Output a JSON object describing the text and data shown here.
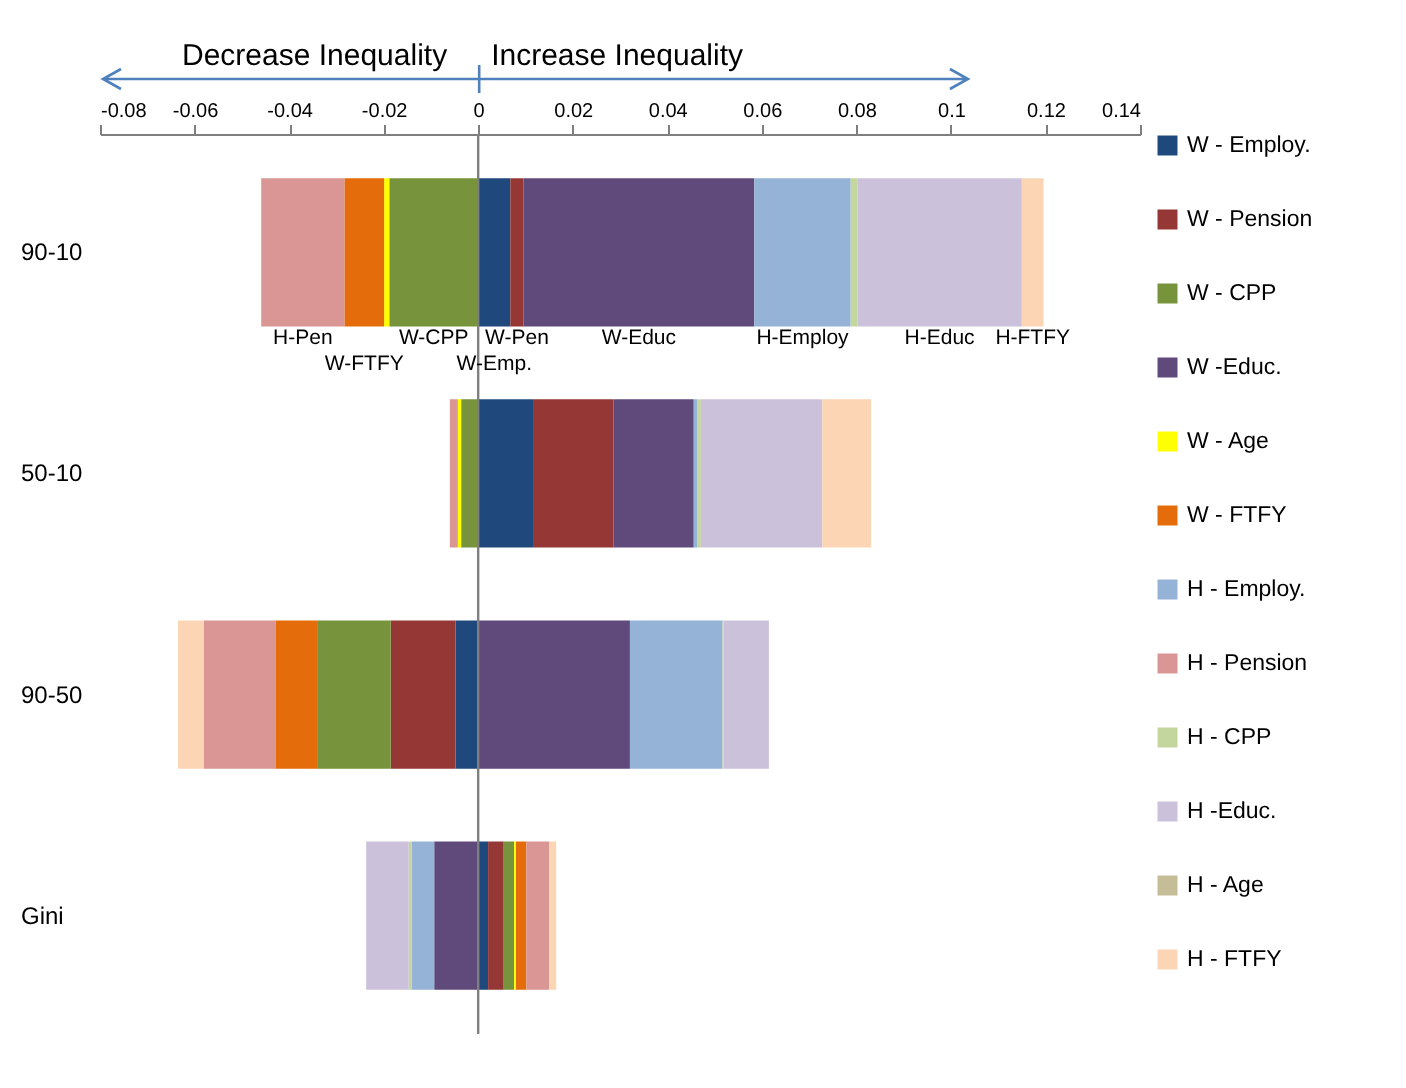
{
  "chart_data": {
    "type": "bar",
    "orientation": "horizontal",
    "stacked": true,
    "legend": "right",
    "grid": false,
    "categories": [
      "90-10",
      "50-10",
      "90-50",
      "Gini"
    ],
    "xlim": [
      -0.08,
      0.14
    ],
    "xticks": [
      -0.08,
      -0.06,
      -0.04,
      -0.02,
      0,
      0.02,
      0.04,
      0.06,
      0.08,
      0.1,
      0.12,
      0.14
    ],
    "series": [
      {
        "name": "W - Employ.",
        "color": "#1f497d",
        "values": [
          0.0068,
          0.0116,
          -0.0048,
          0.0021
        ]
      },
      {
        "name": "W - Pension",
        "color": "#953735",
        "values": [
          0.0028,
          0.017,
          -0.0137,
          0.0033
        ]
      },
      {
        "name": "W - CPP",
        "color": "#77933c",
        "values": [
          -0.0188,
          -0.0036,
          -0.0154,
          0.0022
        ]
      },
      {
        "name": "W -Educ.",
        "color": "#604a7b",
        "values": [
          0.0488,
          0.017,
          0.0321,
          -0.0093
        ]
      },
      {
        "name": "W - Age",
        "color": "#ffff00",
        "values": [
          -0.0011,
          -0.0007,
          null,
          0.0004
        ]
      },
      {
        "name": "W - FTFY",
        "color": "#e46c0a",
        "values": [
          -0.0084,
          null,
          -0.009,
          0.0022
        ]
      },
      {
        "name": "H - Employ.",
        "color": "#95b3d7",
        "values": [
          0.0204,
          0.0007,
          0.0196,
          -0.0048
        ]
      },
      {
        "name": "H - Pension",
        "color": "#d99694",
        "values": [
          -0.0176,
          -0.0017,
          -0.0151,
          0.0048
        ]
      },
      {
        "name": "H - CPP",
        "color": "#c3d69b",
        "values": [
          0.0014,
          0.0008,
          0.0002,
          -0.0006
        ]
      },
      {
        "name": "H -Educ.",
        "color": "#ccc1da",
        "values": [
          0.0348,
          0.0257,
          0.0096,
          -0.009
        ]
      },
      {
        "name": "H - Age",
        "color": "#c4bd97",
        "values": [
          null,
          null,
          null,
          null
        ]
      },
      {
        "name": "H - FTFY",
        "color": "#fcd5b5",
        "values": [
          0.0046,
          0.0103,
          -0.0055,
          0.0015
        ]
      }
    ],
    "ref_lines": [
      {
        "axis": "x",
        "value": 0,
        "color": "#7f7f7f"
      }
    ],
    "annotations": [
      "Decrease Inequality",
      "Increase Inequality",
      "H-Pen",
      "W-FTFY",
      "W-CPP",
      "W-Emp.",
      "W-Pen",
      "W-Educ",
      "H-Employ",
      "H-Educ",
      "H-FTFY"
    ]
  }
}
